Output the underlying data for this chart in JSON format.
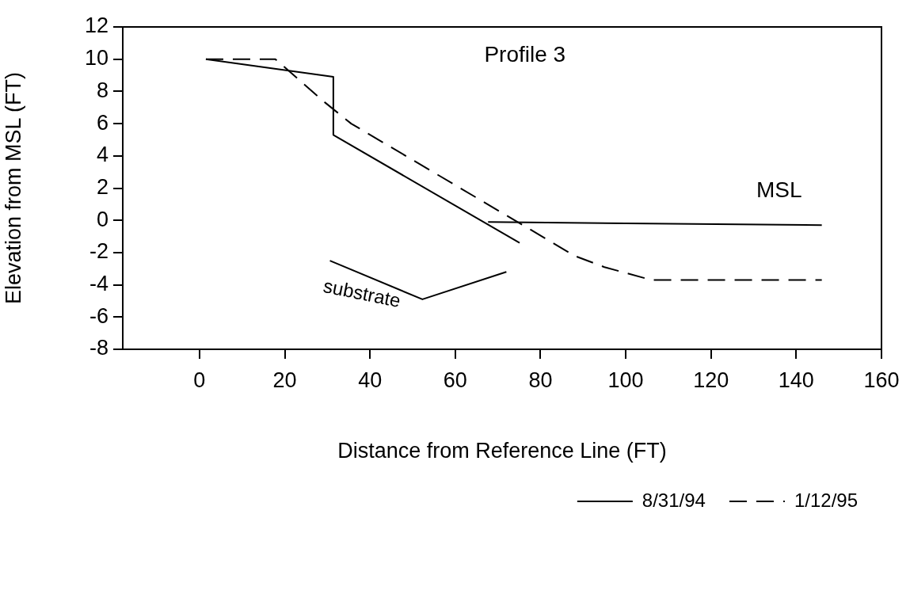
{
  "chart_data": {
    "type": "line",
    "title": "Profile 3",
    "xlabel": "Distance from Reference Line (FT)",
    "ylabel": "Elevation from MSL (FT)",
    "xlim": [
      -18,
      160
    ],
    "xticks": [
      0,
      20,
      40,
      60,
      80,
      100,
      120,
      140,
      160
    ],
    "ylim": [
      -8,
      12
    ],
    "yticks": [
      -8,
      -6,
      -4,
      -2,
      0,
      2,
      4,
      6,
      8,
      10,
      12
    ],
    "grid": false,
    "legend": "bottom right",
    "marker": "none",
    "series": [
      {
        "name": "8/31/94",
        "color": "#000000",
        "line_style": "solid",
        "x": [
          1.5,
          31.4,
          31.4,
          75.1
        ],
        "values": [
          10,
          8.9,
          5.3,
          -1.4
        ]
      },
      {
        "name": "1/12/95",
        "color": "#000000",
        "line_style": "dashed",
        "x": [
          1.5,
          17.8,
          29.5,
          35.6,
          81,
          88,
          95,
          106,
          146
        ],
        "values": [
          10,
          10,
          7.3,
          6,
          -1.1,
          -2.2,
          -2.9,
          -3.7,
          -3.7
        ]
      },
      {
        "color": "#000000",
        "line_style": "solid",
        "x": [
          67.7,
          146
        ],
        "values": [
          -0.1,
          -0.3
        ]
      },
      {
        "color": "#000000",
        "line_style": "solid",
        "x": [
          30.6,
          52.3,
          72
        ],
        "values": [
          -2.5,
          -4.9,
          -3.2
        ]
      }
    ],
    "annotations": [
      "MSL",
      "substrate"
    ]
  }
}
